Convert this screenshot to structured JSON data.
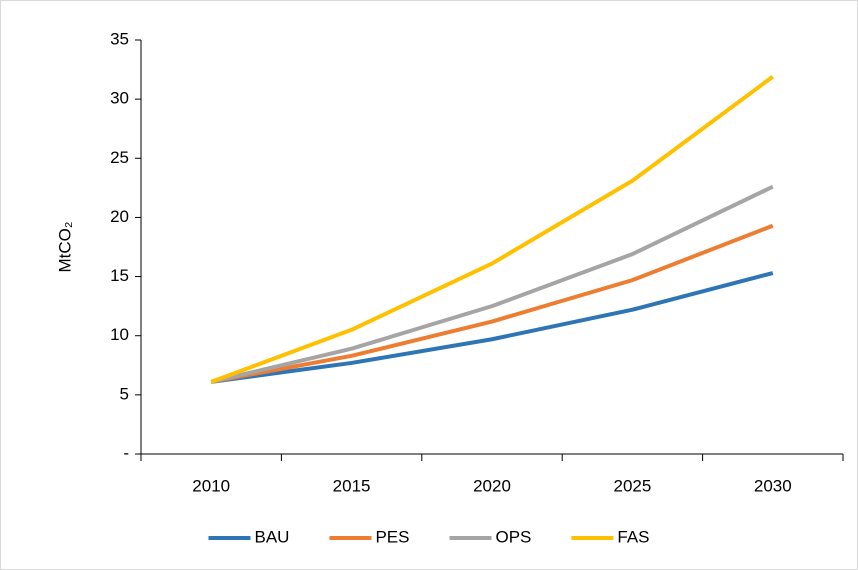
{
  "chart_data": {
    "type": "line",
    "y_label": "MtCO₂",
    "categories": [
      "2010",
      "2015",
      "2020",
      "2025",
      "2030"
    ],
    "series": [
      {
        "name": "BAU",
        "color": "#2e75b6",
        "values": [
          6.1,
          7.7,
          9.7,
          12.2,
          15.3
        ]
      },
      {
        "name": "PES",
        "color": "#ed7d31",
        "values": [
          6.1,
          8.3,
          11.2,
          14.7,
          19.3
        ]
      },
      {
        "name": "OPS",
        "color": "#a5a5a5",
        "values": [
          6.1,
          8.9,
          12.5,
          16.9,
          22.6
        ]
      },
      {
        "name": "FAS",
        "color": "#ffc000",
        "values": [
          6.1,
          10.5,
          16.1,
          23.1,
          31.9
        ]
      }
    ],
    "ylim": [
      0,
      35
    ],
    "yticks": [
      {
        "value": 0,
        "label": "-"
      },
      5,
      10,
      15,
      20,
      25,
      30,
      35
    ],
    "grid": false,
    "legend": "bottom"
  }
}
